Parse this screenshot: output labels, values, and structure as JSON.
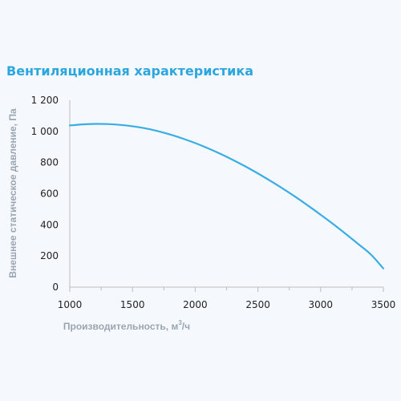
{
  "chart_data": {
    "type": "line",
    "title": "Вентиляционная характеристика",
    "xlabel": "Производительность, м",
    "xlabel_sup": "3",
    "xlabel_suffix": "/ч",
    "ylabel": "Внешнее статическое давление, Па",
    "xlim": [
      1000,
      3500
    ],
    "ylim": [
      0,
      1200
    ],
    "x_ticks": [
      "1000",
      "1500",
      "2000",
      "2500",
      "3000",
      "3500"
    ],
    "y_ticks": [
      "0",
      "200",
      "400",
      "600",
      "800",
      "1 000",
      "1 200"
    ],
    "grid": false,
    "series": [
      {
        "color": "#39ade4",
        "x": [
          1000,
          1100,
          1200,
          1300,
          1400,
          1500,
          1600,
          1700,
          1800,
          1900,
          2000,
          2100,
          2200,
          2300,
          2400,
          2500,
          2600,
          2700,
          2800,
          2900,
          3000,
          3100,
          3200,
          3300,
          3400,
          3500
        ],
        "y": [
          1038,
          1045,
          1048,
          1047,
          1042,
          1033,
          1020,
          1002,
          980,
          954,
          925,
          892,
          856,
          817,
          775,
          730,
          682,
          632,
          579,
          523,
          465,
          405,
          342,
          277,
          210,
          120
        ]
      }
    ]
  }
}
